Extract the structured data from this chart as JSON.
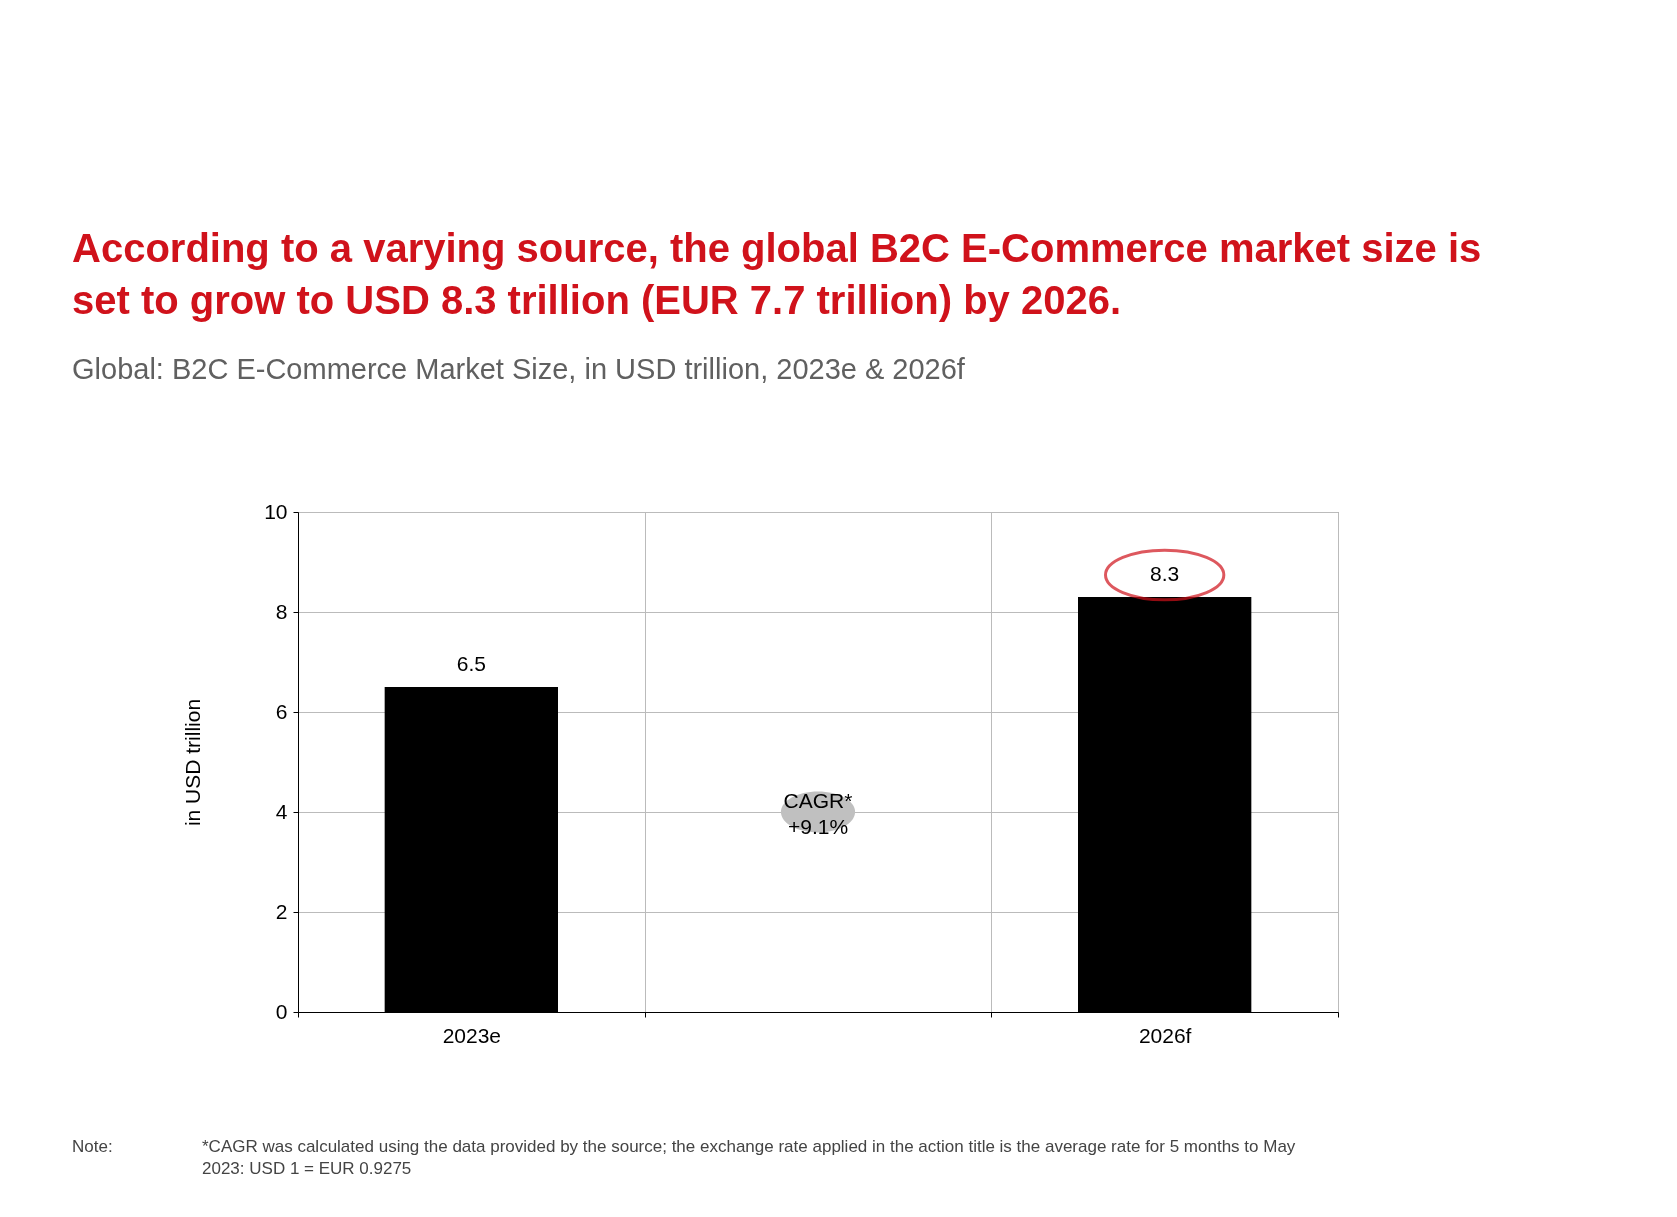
{
  "chart_data": {
    "type": "bar",
    "title": "According to a varying source, the global B2C E-Commerce market size is set to grow to USD 8.3 trillion (EUR 7.7 trillion) by 2026.",
    "subtitle": "Global: B2C E-Commerce Market Size, in USD trillion, 2023e & 2026f",
    "ylabel": "in USD trillion",
    "categories": [
      "2023e",
      null,
      "2026f"
    ],
    "values": [
      6.5,
      null,
      8.3
    ],
    "color": "#000000",
    "ylim": [
      0,
      10
    ],
    "yticks": [
      0,
      2,
      4,
      6,
      8,
      10
    ],
    "grid": true,
    "data_labels": true,
    "annotations": [
      "CAGR*\n+9.1%",
      "Note: *CAGR was calculated using the data provided by the source; the exchange rate applied in the action title is the average rate for 5 months to May 2023: USD 1 = EUR 0.9275"
    ]
  }
}
